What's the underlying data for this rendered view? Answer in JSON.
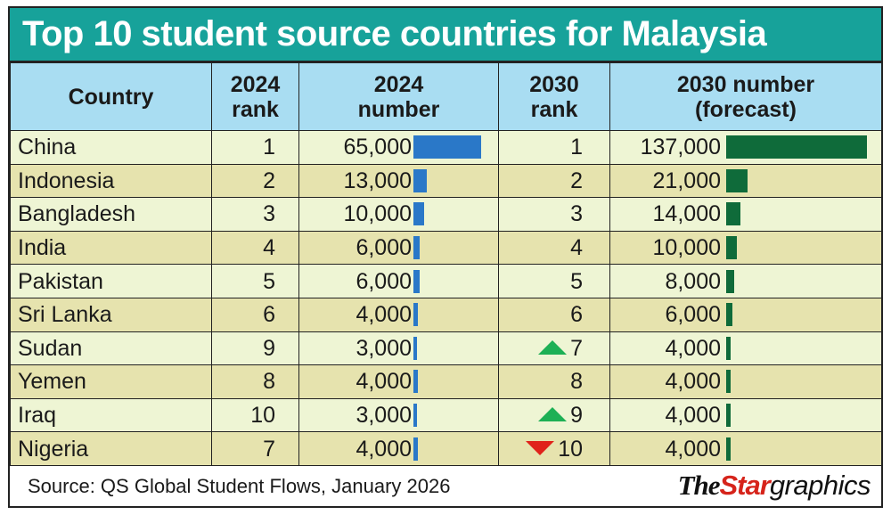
{
  "title": "Top 10 student source countries for Malaysia",
  "headers": {
    "country": "Country",
    "rank2024": [
      "2024",
      "rank"
    ],
    "number2024": [
      "2024",
      "number"
    ],
    "rank2030": [
      "2030",
      "rank"
    ],
    "number2030": [
      "2030 number",
      "(forecast)"
    ]
  },
  "source": "Source: QS Global Student Flows, January 2026",
  "logo": {
    "the": "The",
    "star": "Star",
    "graphics": "graphics"
  },
  "colors": {
    "title_bg": "#17a29a",
    "header_bg": "#a9ddf2",
    "row_light": "#eef5d4",
    "row_dark": "#e6e3ae",
    "bar_2024": "#2a78c8",
    "bar_2030": "#0f6b3a",
    "arrow_up": "#1db055",
    "arrow_down": "#e0231b"
  },
  "chart_data": {
    "type": "table",
    "columns": [
      "Country",
      "2024 rank",
      "2024 number",
      "2030 rank",
      "2030 number (forecast)"
    ],
    "rows": [
      {
        "country": "China",
        "rank2024": 1,
        "num2024": 65000,
        "num2024_label": "65,000",
        "rank2030": 1,
        "trend": "",
        "num2030": 137000,
        "num2030_label": "137,000"
      },
      {
        "country": "Indonesia",
        "rank2024": 2,
        "num2024": 13000,
        "num2024_label": "13,000",
        "rank2030": 2,
        "trend": "",
        "num2030": 21000,
        "num2030_label": "21,000"
      },
      {
        "country": "Bangladesh",
        "rank2024": 3,
        "num2024": 10000,
        "num2024_label": "10,000",
        "rank2030": 3,
        "trend": "",
        "num2030": 14000,
        "num2030_label": "14,000"
      },
      {
        "country": "India",
        "rank2024": 4,
        "num2024": 6000,
        "num2024_label": "6,000",
        "rank2030": 4,
        "trend": "",
        "num2030": 10000,
        "num2030_label": "10,000"
      },
      {
        "country": "Pakistan",
        "rank2024": 5,
        "num2024": 6000,
        "num2024_label": "6,000",
        "rank2030": 5,
        "trend": "",
        "num2030": 8000,
        "num2030_label": "8,000"
      },
      {
        "country": "Sri Lanka",
        "rank2024": 6,
        "num2024": 4000,
        "num2024_label": "4,000",
        "rank2030": 6,
        "trend": "",
        "num2030": 6000,
        "num2030_label": "6,000"
      },
      {
        "country": "Sudan",
        "rank2024": 9,
        "num2024": 3000,
        "num2024_label": "3,000",
        "rank2030": 7,
        "trend": "up",
        "num2030": 4000,
        "num2030_label": "4,000"
      },
      {
        "country": "Yemen",
        "rank2024": 8,
        "num2024": 4000,
        "num2024_label": "4,000",
        "rank2030": 8,
        "trend": "",
        "num2030": 4000,
        "num2030_label": "4,000"
      },
      {
        "country": "Iraq",
        "rank2024": 10,
        "num2024": 3000,
        "num2024_label": "3,000",
        "rank2030": 9,
        "trend": "up",
        "num2030": 4000,
        "num2030_label": "4,000"
      },
      {
        "country": "Nigeria",
        "rank2024": 7,
        "num2024": 4000,
        "num2024_label": "4,000",
        "rank2030": 10,
        "trend": "down",
        "num2030": 4000,
        "num2030_label": "4,000"
      }
    ]
  }
}
